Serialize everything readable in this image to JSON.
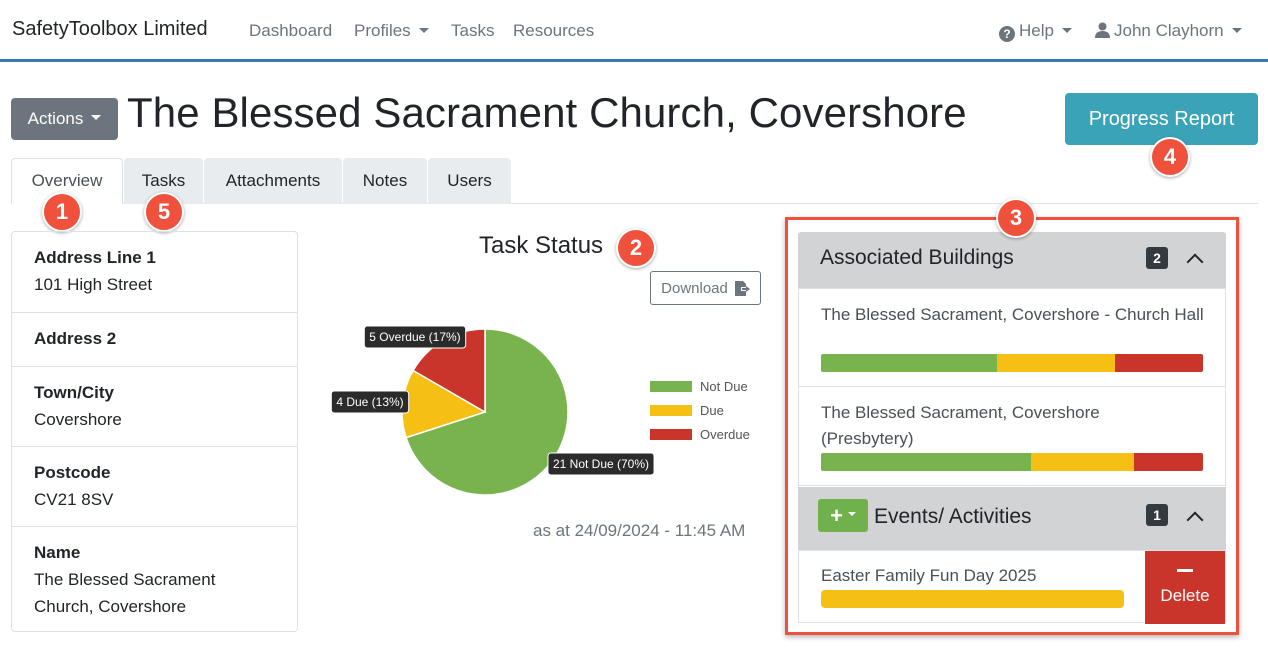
{
  "navbar": {
    "brand": "SafetyToolbox Limited",
    "links": [
      "Dashboard",
      "Profiles",
      "Tasks",
      "Resources"
    ],
    "help_label": "Help",
    "user_name": "John Clayhorn"
  },
  "header": {
    "actions_label": "Actions",
    "title": "The Blessed Sacrament Church, Covershore",
    "progress_report_label": "Progress Report"
  },
  "tabs": [
    "Overview",
    "Tasks",
    "Attachments",
    "Notes",
    "Users"
  ],
  "callouts": [
    "1",
    "2",
    "3",
    "4",
    "5"
  ],
  "address": [
    {
      "label": "Address Line 1",
      "value": "101 High Street"
    },
    {
      "label": "Address 2",
      "value": ""
    },
    {
      "label": "Town/City",
      "value": "Covershore"
    },
    {
      "label": "Postcode",
      "value": "CV21 8SV"
    },
    {
      "label": "Name",
      "value": "The Blessed Sacrament Church, Covershore"
    }
  ],
  "task_status": {
    "title": "Task Status",
    "download_label": "Download",
    "as_at": "as at 24/09/2024 - 11:45 AM"
  },
  "chart_data": {
    "type": "pie",
    "title": "Task Status",
    "slices": [
      {
        "name": "Not Due",
        "value": 21,
        "percent": 70,
        "label": "21 Not Due (70%)",
        "color": "#78b34e"
      },
      {
        "name": "Due",
        "value": 4,
        "percent": 13,
        "label": "4 Due (13%)",
        "color": "#f5bf13"
      },
      {
        "name": "Overdue",
        "value": 5,
        "percent": 17,
        "label": "5 Overdue (17%)",
        "color": "#c9352b"
      }
    ],
    "legend": [
      "Not Due",
      "Due",
      "Overdue"
    ],
    "legend_position": "right"
  },
  "associated_buildings": {
    "title": "Associated Buildings",
    "count": "2",
    "items": [
      {
        "name": "The Blessed Sacrament, Covershore - Church Hall",
        "bar": [
          0.46,
          0.31,
          0.23
        ]
      },
      {
        "name": "The Blessed Sacrament, Covershore (Presbytery)",
        "bar": [
          0.55,
          0.27,
          0.18
        ]
      }
    ]
  },
  "events": {
    "title": "Events/ Activities",
    "count": "1",
    "add_label": "+",
    "items": [
      {
        "name": "Easter Family Fun Day 2025",
        "bar": [
          0,
          1,
          0
        ]
      }
    ],
    "delete_label": "Delete"
  },
  "colors": {
    "not_due": "#78b34e",
    "due": "#f5bf13",
    "overdue": "#c9352b",
    "accent": "#3aa3b8",
    "callout": "#f0513d"
  }
}
